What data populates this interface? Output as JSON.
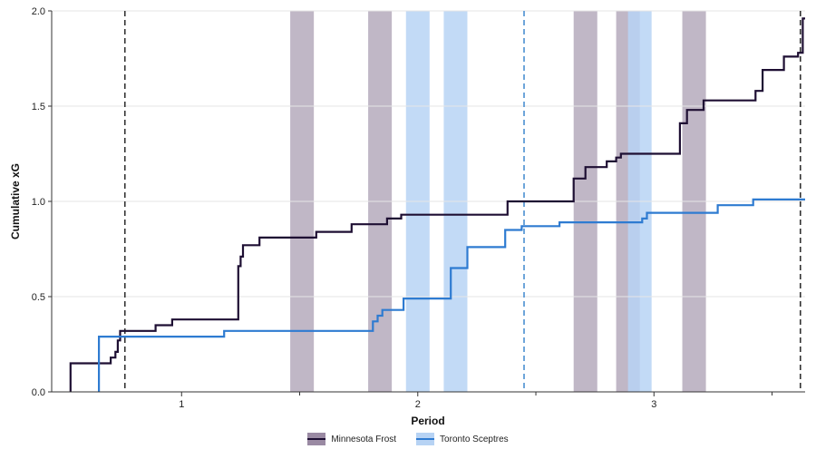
{
  "chart_data": {
    "type": "line",
    "step": true,
    "title": "",
    "xlabel": "Period",
    "ylabel": "Cumulative xG",
    "xlim": [
      0.45,
      3.64
    ],
    "ylim": [
      0,
      2.0
    ],
    "x_ticks": [
      {
        "value": 1,
        "label": "1"
      },
      {
        "value": 2,
        "label": "2"
      },
      {
        "value": 3,
        "label": "3"
      }
    ],
    "x_minor_ticks": [
      1.5,
      2.5,
      3.5
    ],
    "y_ticks": [
      {
        "value": 0,
        "label": "0.0"
      },
      {
        "value": 0.5,
        "label": "0.5"
      },
      {
        "value": 1.0,
        "label": "1.0"
      },
      {
        "value": 1.5,
        "label": "1.5"
      },
      {
        "value": 2.0,
        "label": "2.0"
      }
    ],
    "grid": "horizontal",
    "legend_position": "bottom",
    "series": [
      {
        "name": "Minnesota Frost",
        "color": "#1e0f33",
        "band_color": "#9a8aa3",
        "points": [
          [
            0.53,
            0
          ],
          [
            0.53,
            0.15
          ],
          [
            0.7,
            0.15
          ],
          [
            0.7,
            0.18
          ],
          [
            0.72,
            0.18
          ],
          [
            0.72,
            0.21
          ],
          [
            0.73,
            0.21
          ],
          [
            0.73,
            0.27
          ],
          [
            0.74,
            0.27
          ],
          [
            0.74,
            0.32
          ],
          [
            0.89,
            0.32
          ],
          [
            0.89,
            0.35
          ],
          [
            0.96,
            0.35
          ],
          [
            0.96,
            0.38
          ],
          [
            1.24,
            0.38
          ],
          [
            1.24,
            0.66
          ],
          [
            1.25,
            0.66
          ],
          [
            1.25,
            0.71
          ],
          [
            1.26,
            0.71
          ],
          [
            1.26,
            0.77
          ],
          [
            1.33,
            0.77
          ],
          [
            1.33,
            0.81
          ],
          [
            1.57,
            0.81
          ],
          [
            1.57,
            0.84
          ],
          [
            1.72,
            0.84
          ],
          [
            1.72,
            0.88
          ],
          [
            1.87,
            0.88
          ],
          [
            1.87,
            0.91
          ],
          [
            1.93,
            0.91
          ],
          [
            1.93,
            0.93
          ],
          [
            2.38,
            0.93
          ],
          [
            2.38,
            1.0
          ],
          [
            2.66,
            1.0
          ],
          [
            2.66,
            1.12
          ],
          [
            2.71,
            1.12
          ],
          [
            2.71,
            1.18
          ],
          [
            2.8,
            1.18
          ],
          [
            2.8,
            1.21
          ],
          [
            2.84,
            1.21
          ],
          [
            2.84,
            1.23
          ],
          [
            2.86,
            1.23
          ],
          [
            2.86,
            1.25
          ],
          [
            3.11,
            1.25
          ],
          [
            3.11,
            1.41
          ],
          [
            3.14,
            1.41
          ],
          [
            3.14,
            1.48
          ],
          [
            3.21,
            1.48
          ],
          [
            3.21,
            1.53
          ],
          [
            3.43,
            1.53
          ],
          [
            3.43,
            1.58
          ],
          [
            3.46,
            1.58
          ],
          [
            3.46,
            1.69
          ],
          [
            3.55,
            1.69
          ],
          [
            3.55,
            1.76
          ],
          [
            3.61,
            1.76
          ],
          [
            3.61,
            1.78
          ],
          [
            3.63,
            1.78
          ],
          [
            3.63,
            1.96
          ],
          [
            3.64,
            1.96
          ]
        ],
        "penalty_windows": [
          [
            1.46,
            1.56
          ],
          [
            1.79,
            1.89
          ],
          [
            2.66,
            2.76
          ],
          [
            2.84,
            2.94
          ],
          [
            3.12,
            3.22
          ]
        ]
      },
      {
        "name": "Toronto Sceptres",
        "color": "#2e7bd1",
        "band_color": "#b7d3f4",
        "points": [
          [
            0.65,
            0
          ],
          [
            0.65,
            0.29
          ],
          [
            1.18,
            0.29
          ],
          [
            1.18,
            0.32
          ],
          [
            1.81,
            0.32
          ],
          [
            1.81,
            0.37
          ],
          [
            1.83,
            0.37
          ],
          [
            1.83,
            0.4
          ],
          [
            1.85,
            0.4
          ],
          [
            1.85,
            0.43
          ],
          [
            1.94,
            0.43
          ],
          [
            1.94,
            0.49
          ],
          [
            2.14,
            0.49
          ],
          [
            2.14,
            0.65
          ],
          [
            2.21,
            0.65
          ],
          [
            2.21,
            0.76
          ],
          [
            2.37,
            0.76
          ],
          [
            2.37,
            0.85
          ],
          [
            2.44,
            0.85
          ],
          [
            2.44,
            0.87
          ],
          [
            2.6,
            0.87
          ],
          [
            2.6,
            0.89
          ],
          [
            2.95,
            0.89
          ],
          [
            2.95,
            0.91
          ],
          [
            2.97,
            0.91
          ],
          [
            2.97,
            0.94
          ],
          [
            3.27,
            0.94
          ],
          [
            3.27,
            0.98
          ],
          [
            3.42,
            0.98
          ],
          [
            3.42,
            1.01
          ],
          [
            3.64,
            1.01
          ]
        ],
        "penalty_windows": [
          [
            1.95,
            2.05
          ],
          [
            2.11,
            2.21
          ],
          [
            2.89,
            2.99
          ]
        ]
      }
    ],
    "reference_lines": [
      {
        "x": 0.76,
        "color": "#333333",
        "style": "dashed"
      },
      {
        "x": 2.45,
        "color": "#4a8fd1",
        "style": "dashed"
      },
      {
        "x": 3.62,
        "color": "#333333",
        "style": "dashed"
      }
    ]
  }
}
